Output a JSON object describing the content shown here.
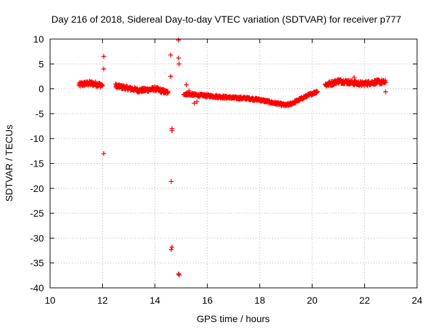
{
  "chart_data": {
    "type": "scatter",
    "title": "Day 216 of 2018, Sidereal Day-to-day VTEC variation (SDTVAR) for receiver p777",
    "xlabel": "GPS time / hours",
    "ylabel": "SDTVAR / TECUs",
    "xlim": [
      10,
      24
    ],
    "ylim": [
      -40,
      10
    ],
    "xticks": [
      10,
      12,
      14,
      16,
      18,
      20,
      22,
      24
    ],
    "yticks": [
      10,
      5,
      0,
      -5,
      -10,
      -15,
      -20,
      -25,
      -30,
      -35,
      -40
    ],
    "grid": true,
    "marker": "+",
    "color": "#ff0000",
    "series": [
      {
        "name": "SDTVAR",
        "segments": [
          {
            "x": [
              11.1,
              11.3,
              11.5,
              11.7,
              11.9,
              12.0
            ],
            "y": [
              0.8,
              1.0,
              1.1,
              1.0,
              0.8,
              0.7
            ],
            "spread": 0.9
          },
          {
            "x": [
              12.5,
              12.8,
              13.1,
              13.4,
              13.7,
              14.0,
              14.2,
              14.5
            ],
            "y": [
              0.6,
              0.3,
              0.0,
              -0.3,
              -0.2,
              0.0,
              -0.3,
              -0.8
            ],
            "spread": 0.8
          },
          {
            "x": [
              15.1,
              15.5,
              16.0,
              16.5,
              17.0,
              17.5,
              18.0,
              18.5,
              19.0,
              19.2,
              19.5,
              19.8,
              20.2
            ],
            "y": [
              -1.0,
              -1.2,
              -1.4,
              -1.6,
              -1.8,
              -1.9,
              -2.2,
              -2.8,
              -3.3,
              -3.0,
              -2.2,
              -1.4,
              -0.5
            ],
            "spread": 0.5
          },
          {
            "x": [
              20.5,
              20.8,
              21.0,
              21.3,
              21.6,
              21.9,
              22.2,
              22.5,
              22.8
            ],
            "y": [
              0.8,
              1.2,
              1.6,
              1.4,
              1.2,
              1.0,
              1.2,
              1.4,
              1.3
            ],
            "spread": 0.9
          }
        ],
        "points": [
          {
            "x": 12.05,
            "y": 6.5
          },
          {
            "x": 12.05,
            "y": 4.0
          },
          {
            "x": 12.05,
            "y": -13.0
          },
          {
            "x": 14.6,
            "y": 6.8
          },
          {
            "x": 14.6,
            "y": 2.5
          },
          {
            "x": 14.65,
            "y": -8.0
          },
          {
            "x": 14.65,
            "y": -8.4
          },
          {
            "x": 14.62,
            "y": -18.6
          },
          {
            "x": 14.65,
            "y": -31.8
          },
          {
            "x": 14.62,
            "y": -32.3
          },
          {
            "x": 14.9,
            "y": 9.8
          },
          {
            "x": 14.9,
            "y": 6.2
          },
          {
            "x": 14.92,
            "y": 5.0
          },
          {
            "x": 14.9,
            "y": -37.2
          },
          {
            "x": 14.93,
            "y": -37.4
          },
          {
            "x": 15.2,
            "y": 0.8
          },
          {
            "x": 15.3,
            "y": -0.4
          },
          {
            "x": 15.6,
            "y": -2.6
          },
          {
            "x": 15.5,
            "y": -2.9
          },
          {
            "x": 21.6,
            "y": 2.3
          },
          {
            "x": 22.8,
            "y": -0.6
          }
        ]
      }
    ]
  }
}
